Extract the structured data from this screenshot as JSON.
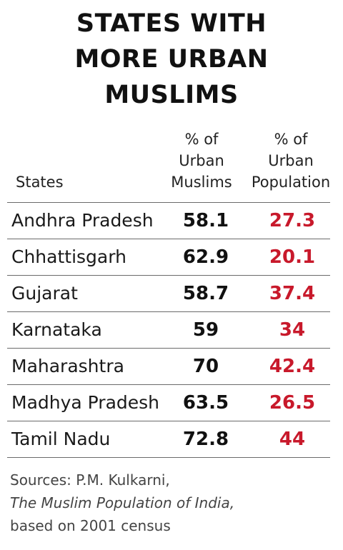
{
  "colors": {
    "urban_pop_value": "#c8192b",
    "text": "#111111",
    "rule": "#6a6a6a"
  },
  "chart_data": {
    "type": "table",
    "title": [
      "STATES WITH",
      "MORE URBAN",
      "MUSLIMS"
    ],
    "columns": {
      "states": "States",
      "urban_muslims": [
        "% of",
        "Urban",
        "Muslims"
      ],
      "urban_population": [
        "% of",
        "Urban",
        "Population"
      ]
    },
    "rows": [
      {
        "state": "Andhra Pradesh",
        "urban_muslims": "58.1",
        "urban_population": "27.3"
      },
      {
        "state": "Chhattisgarh",
        "urban_muslims": "62.9",
        "urban_population": "20.1"
      },
      {
        "state": "Gujarat",
        "urban_muslims": "58.7",
        "urban_population": "37.4"
      },
      {
        "state": "Karnataka",
        "urban_muslims": "59",
        "urban_population": "34"
      },
      {
        "state": "Maharashtra",
        "urban_muslims": "70",
        "urban_population": "42.4"
      },
      {
        "state": "Madhya Pradesh",
        "urban_muslims": "63.5",
        "urban_population": "26.5"
      },
      {
        "state": "Tamil Nadu",
        "urban_muslims": "72.8",
        "urban_population": "44"
      }
    ]
  },
  "source": {
    "line1": "Sources: P.M. Kulkarni,",
    "line2": "The Muslim Population of India,",
    "line3": "based on 2001 census"
  }
}
